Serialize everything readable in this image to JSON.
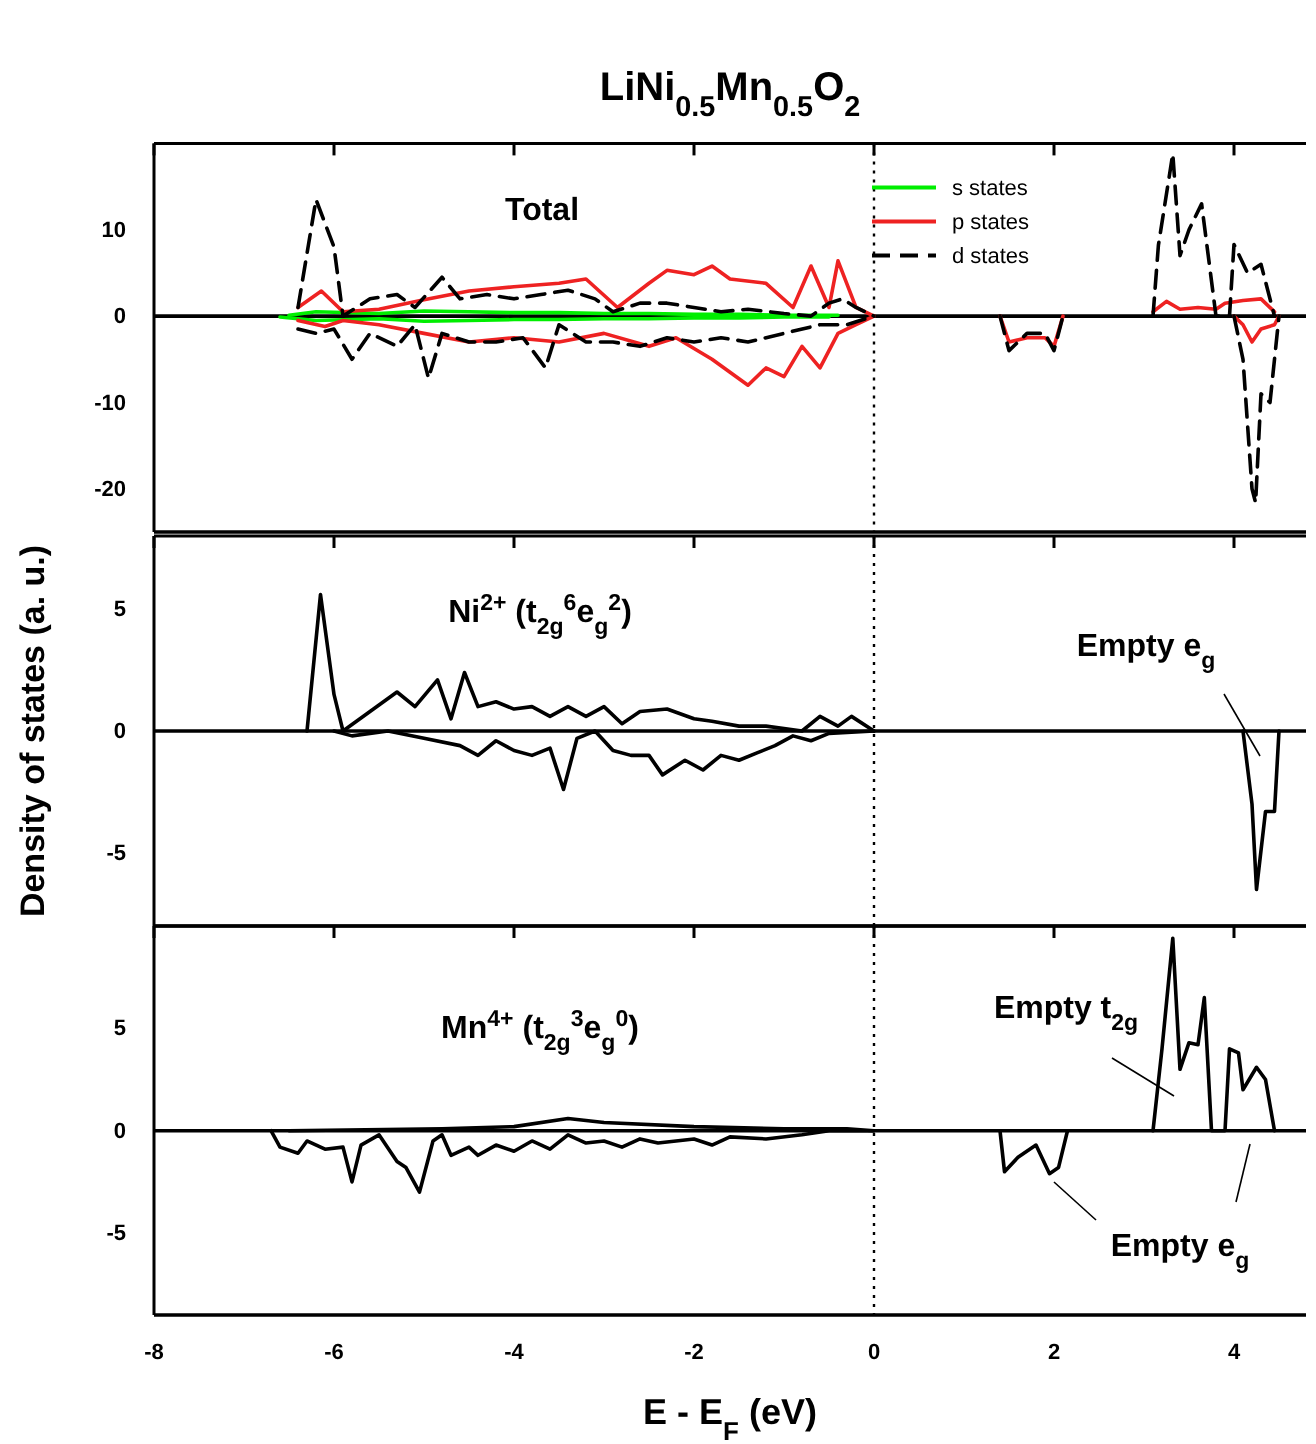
{
  "chart_data": [
    {
      "type": "line",
      "title": "LiNi$_{0.5}$Mn$_{0.5}$O$_{2}$",
      "xlim": [
        -8,
        4.8
      ],
      "xticks": [
        -8,
        -6,
        -4,
        -2,
        0,
        2,
        4
      ],
      "ylim": [
        -25,
        20
      ],
      "yticks": [
        -20,
        -10,
        0,
        10
      ],
      "tick_labels": "y",
      "legend": "top right",
      "annotations": [
        "Total"
      ],
      "ref_lines": [
        {
          "axis": "x",
          "value": 0,
          "line_style": "dotted",
          "color": "#000000"
        },
        {
          "axis": "y",
          "value": 0,
          "line_style": "solid",
          "color": "#000000"
        }
      ],
      "series": [
        {
          "name": "s states",
          "color": "#00ee00",
          "line_style": "solid",
          "x": [
            -6.5,
            -6.2,
            -5.5,
            -5,
            -4.5,
            -4,
            -3.5,
            -3,
            -2.5,
            -2,
            -1.5,
            -1,
            -0.4
          ],
          "values": [
            0.1,
            0.5,
            0.3,
            0.6,
            0.5,
            0.4,
            0.4,
            0.3,
            0.3,
            0.2,
            0.2,
            0.1,
            0.1
          ]
        },
        {
          "color": "#00ee00",
          "line_style": "solid",
          "x": [
            -6.6,
            -6.2,
            -5.5,
            -5,
            -4.5,
            -4,
            -3.5,
            -3,
            -2.5,
            -2,
            -1.5,
            -1,
            -0.5
          ],
          "values": [
            -0.1,
            -0.5,
            -0.3,
            -0.6,
            -0.5,
            -0.4,
            -0.4,
            -0.3,
            -0.3,
            -0.2,
            -0.2,
            -0.1,
            -0.1
          ]
        },
        {
          "name": "p states",
          "color": "#ee2222",
          "line_style": "solid",
          "x": [
            -6.4,
            -6.14,
            -5.9,
            -5.5,
            -5,
            -4.5,
            -4,
            -3.5,
            -3.2,
            -2.85,
            -2.5,
            -2.3,
            -2,
            -1.8,
            -1.6,
            -1.2,
            -0.9,
            -0.7,
            -0.5,
            -0.4,
            -0.2,
            0,
            1,
            3.1,
            3.25,
            3.4,
            3.6,
            3.8,
            3.9,
            4.1,
            4.3,
            4.45
          ],
          "values": [
            1,
            2.9,
            0.5,
            0.8,
            1.9,
            2.9,
            3.4,
            3.8,
            4.3,
            1,
            3.8,
            5.3,
            4.8,
            5.8,
            4.3,
            3.8,
            1,
            5.8,
            1,
            6.4,
            1,
            0,
            null,
            0.5,
            1.7,
            0.8,
            1,
            0.8,
            1.5,
            1.8,
            2,
            0.5
          ]
        },
        {
          "color": "#ee2222",
          "line_style": "solid",
          "x": [
            -6.4,
            -6.1,
            -5.9,
            -5.5,
            -5,
            -4.5,
            -4,
            -3.5,
            -3,
            -2.5,
            -2.2,
            -1.8,
            -1.6,
            -1.4,
            -1.2,
            -1,
            -0.8,
            -0.6,
            -0.4,
            -0.2,
            0,
            1,
            1.4,
            1.5,
            1.7,
            1.9,
            2,
            2.1,
            3,
            4,
            4.1,
            4.2,
            4.3,
            4.45,
            4.5
          ],
          "values": [
            -0.5,
            -1.2,
            -0.5,
            -1,
            -2,
            -3,
            -2.5,
            -3,
            -2,
            -3.5,
            -2.5,
            -5,
            -6.5,
            -8,
            -6,
            -7,
            -3.5,
            -6,
            -2,
            -1,
            0,
            null,
            0,
            -3,
            -2.5,
            -2.5,
            -3.5,
            0,
            null,
            0,
            -1,
            -3,
            -1.5,
            -1,
            0
          ]
        },
        {
          "name": "d states",
          "color": "#000000",
          "line_style": "dashed",
          "x": [
            -6.4,
            -6.2,
            -6,
            -5.9,
            -5.6,
            -5.3,
            -5.1,
            -4.8,
            -4.6,
            -4.3,
            -4,
            -3.7,
            -3.4,
            -3.1,
            -2.9,
            -2.6,
            -2.3,
            -2,
            -1.7,
            -1.4,
            -1,
            -0.7,
            -0.5,
            -0.35,
            -0.2,
            0,
            1,
            3.1,
            3.16,
            3.32,
            3.4,
            3.5,
            3.64,
            3.8,
            3.95,
            4,
            4.15,
            4.3,
            4.45
          ],
          "values": [
            1,
            13.5,
            8,
            0,
            2,
            2.5,
            1,
            4.5,
            2,
            2.5,
            2,
            2.5,
            3,
            2,
            0.5,
            1.5,
            1.5,
            1,
            0.5,
            0.8,
            0.3,
            0,
            1.5,
            2,
            1,
            0,
            null,
            0,
            8.2,
            18.8,
            7,
            10,
            13,
            0,
            0,
            8.3,
            5,
            6,
            0
          ]
        },
        {
          "color": "#000000",
          "line_style": "dashed",
          "x": [
            -6.4,
            -6.2,
            -6,
            -5.8,
            -5.6,
            -5.3,
            -5.1,
            -4.95,
            -4.8,
            -4.5,
            -4.2,
            -3.9,
            -3.65,
            -3.5,
            -3.2,
            -2.9,
            -2.6,
            -2.3,
            -2,
            -1.7,
            -1.4,
            -1,
            -0.6,
            -0.3,
            0,
            1,
            1.4,
            1.5,
            1.7,
            1.9,
            2,
            2.1,
            3,
            4,
            4.1,
            4.2,
            4.24,
            4.3,
            4.4,
            4.5
          ],
          "values": [
            -1.5,
            -2,
            -1.5,
            -5,
            -2,
            -3.5,
            -1,
            -7.2,
            -2,
            -3,
            -3,
            -2.5,
            -6,
            -1,
            -3,
            -3,
            -3.5,
            -2.5,
            -3,
            -2.5,
            -3,
            -2,
            -1,
            -1,
            0,
            null,
            0,
            -4,
            -2,
            -2,
            -4,
            0,
            null,
            0,
            -5,
            -20,
            -21.6,
            -9,
            -10,
            0
          ]
        }
      ]
    },
    {
      "type": "line",
      "ylabel": "Density of states (a. u.)",
      "xlim": [
        -8,
        4.8
      ],
      "xticks": [
        -8,
        -6,
        -4,
        -2,
        0,
        2,
        4
      ],
      "ylim": [
        -8,
        8
      ],
      "yticks": [
        -5,
        0,
        5
      ],
      "tick_labels": "y",
      "annotations": [
        "Ni$^{2+}$ (t$_{2g}$$^{6}$e$_{g}$$^{2}$)",
        "Empty e$_{g}$"
      ],
      "ref_lines": [
        {
          "axis": "x",
          "value": 0,
          "line_style": "dotted",
          "color": "#000000"
        },
        {
          "axis": "y",
          "value": 0,
          "line_style": "solid",
          "color": "#000000"
        }
      ],
      "series": [
        {
          "color": "#000000",
          "line_style": "solid",
          "x": [
            -6.3,
            -6.15,
            -6,
            -5.9,
            -5.6,
            -5.3,
            -5.1,
            -4.85,
            -4.7,
            -4.55,
            -4.4,
            -4.2,
            -4,
            -3.8,
            -3.6,
            -3.4,
            -3.2,
            -3,
            -2.8,
            -2.6,
            -2.3,
            -2,
            -1.8,
            -1.5,
            -1.2,
            -0.8,
            -0.6,
            -0.4,
            -0.25,
            0
          ],
          "values": [
            0,
            5.6,
            1.5,
            0,
            0.8,
            1.6,
            1,
            2.1,
            0.5,
            2.4,
            1,
            1.2,
            0.9,
            1,
            0.6,
            1,
            0.6,
            1,
            0.3,
            0.8,
            0.9,
            0.5,
            0.4,
            0.2,
            0.2,
            0,
            0.6,
            0.2,
            0.6,
            0
          ]
        },
        {
          "color": "#000000",
          "line_style": "solid",
          "x": [
            -6,
            -5.8,
            -5.4,
            -5,
            -4.6,
            -4.4,
            -4.2,
            -4,
            -3.8,
            -3.6,
            -3.45,
            -3.3,
            -3.1,
            -2.9,
            -2.7,
            -2.5,
            -2.35,
            -2.1,
            -1.9,
            -1.7,
            -1.5,
            -1.3,
            -1.1,
            -0.9,
            -0.7,
            -0.5,
            0,
            1,
            4.1,
            4.2,
            4.25,
            4.35,
            4.45,
            4.5
          ],
          "values": [
            0,
            -0.2,
            0,
            -0.3,
            -0.6,
            -1,
            -0.4,
            -0.8,
            -1,
            -0.7,
            -2.4,
            -0.3,
            0,
            -0.8,
            -1,
            -1,
            -1.8,
            -1.2,
            -1.6,
            -1,
            -1.2,
            -0.9,
            -0.6,
            -0.2,
            -0.4,
            -0.1,
            0,
            null,
            0,
            -3,
            -6.5,
            -3.3,
            -3.3,
            0
          ]
        }
      ]
    },
    {
      "type": "line",
      "xlabel": "E - E$_{F}$ (eV)",
      "xlim": [
        -8,
        4.8
      ],
      "xticks": [
        -8,
        -6,
        -4,
        -2,
        0,
        2,
        4
      ],
      "ylim": [
        -9,
        10
      ],
      "yticks": [
        -5,
        0,
        5
      ],
      "annotations": [
        "Mn$^{4+}$ (t$_{2g}$$^{3}$e$_{g}$$^{0}$)",
        "Empty t$_{2g}$",
        "Empty e$_{g}$"
      ],
      "ref_lines": [
        {
          "axis": "x",
          "value": 0,
          "line_style": "dotted",
          "color": "#000000"
        },
        {
          "axis": "y",
          "value": 0,
          "line_style": "solid",
          "color": "#000000"
        }
      ],
      "series": [
        {
          "color": "#000000",
          "line_style": "solid",
          "x": [
            -6.5,
            -4.8,
            -4,
            -3.4,
            -3,
            -2,
            -1,
            -0.3,
            0,
            1,
            3.1,
            3.2,
            3.32,
            3.4,
            3.5,
            3.6,
            3.67,
            3.75,
            3.9,
            3.95,
            4.05,
            4.1,
            4.25,
            4.35,
            4.45
          ],
          "values": [
            0,
            0.1,
            0.2,
            0.6,
            0.4,
            0.2,
            0.1,
            0.1,
            0,
            null,
            0,
            4,
            9.4,
            3,
            4.3,
            4.2,
            6.5,
            0,
            0,
            4,
            3.8,
            2,
            3.1,
            2.5,
            0
          ]
        },
        {
          "color": "#000000",
          "line_style": "solid",
          "x": [
            -6.7,
            -6.6,
            -6.4,
            -6.3,
            -6.1,
            -5.9,
            -5.8,
            -5.7,
            -5.5,
            -5.3,
            -5.2,
            -5.05,
            -4.9,
            -4.8,
            -4.7,
            -4.5,
            -4.4,
            -4.2,
            -4,
            -3.8,
            -3.6,
            -3.4,
            -3.2,
            -3,
            -2.8,
            -2.6,
            -2.4,
            -2,
            -1.8,
            -1.6,
            -1.2,
            -0.8,
            -0.5,
            0,
            1,
            1.4,
            1.45,
            1.6,
            1.8,
            1.95,
            2.05,
            2.15
          ],
          "values": [
            0,
            -0.8,
            -1.1,
            -0.5,
            -0.9,
            -0.8,
            -2.5,
            -0.7,
            -0.2,
            -1.5,
            -1.8,
            -3,
            -0.5,
            -0.2,
            -1.2,
            -0.8,
            -1.2,
            -0.7,
            -1,
            -0.5,
            -0.9,
            -0.2,
            -0.6,
            -0.5,
            -0.8,
            -0.4,
            -0.6,
            -0.4,
            -0.7,
            -0.3,
            -0.4,
            -0.2,
            0,
            0,
            null,
            0,
            -2,
            -1.3,
            -0.7,
            -2.1,
            -1.8,
            0
          ]
        }
      ]
    }
  ]
}
